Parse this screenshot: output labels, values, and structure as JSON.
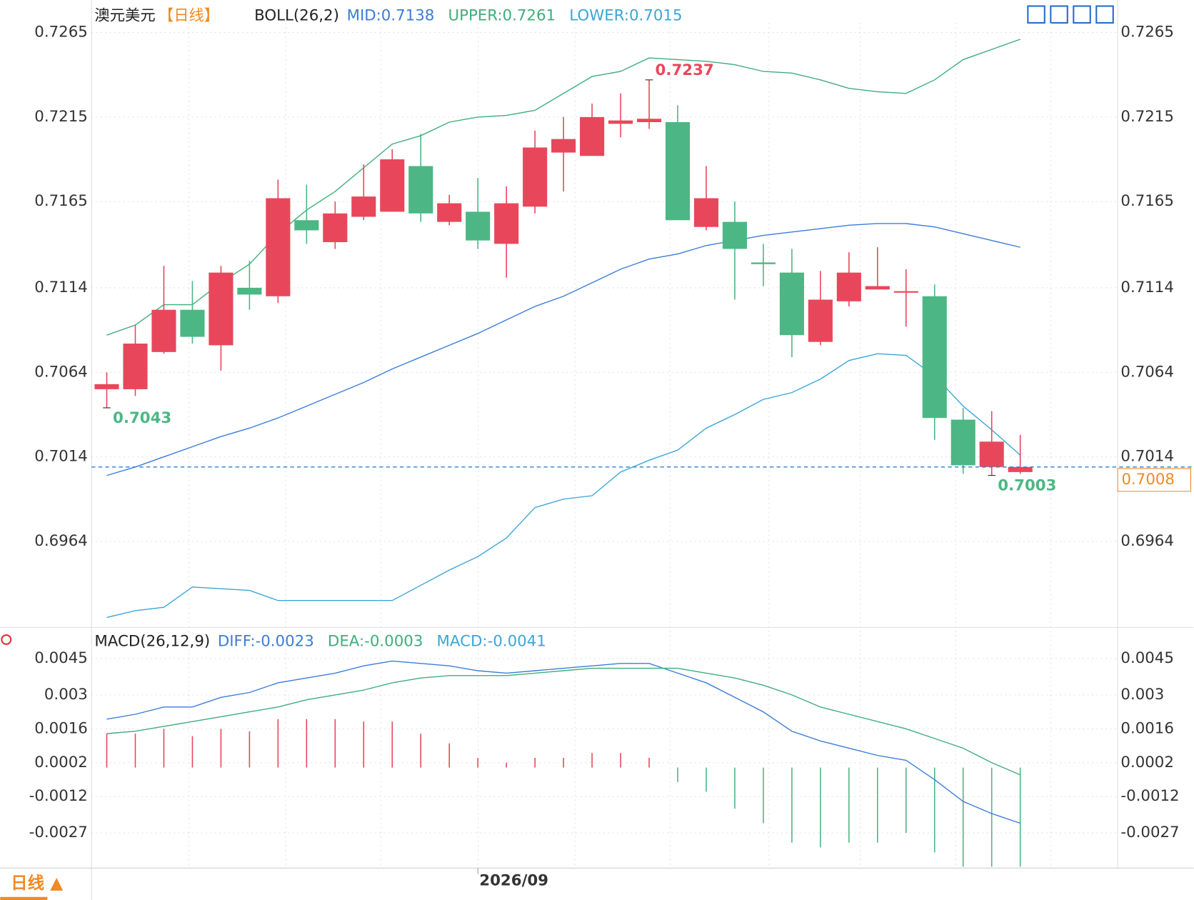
{
  "chart_data": [
    {
      "type": "candlestick",
      "title": "澳元美元",
      "period": "【日线】",
      "indicator": "BOLL(26,2)",
      "x": [
        null,
        null,
        null,
        null,
        null,
        null,
        null,
        null,
        null,
        null,
        null,
        null,
        null,
        "2026/09",
        null,
        null,
        null,
        null,
        null,
        null,
        null,
        null,
        null,
        null,
        null,
        null,
        null,
        null,
        null,
        null,
        null,
        null,
        null
      ],
      "open": [
        0.7054,
        0.7054,
        0.7076,
        0.7101,
        0.708,
        0.7114,
        0.7109,
        0.7154,
        0.7141,
        0.7156,
        0.7159,
        0.7186,
        0.7153,
        0.7159,
        0.714,
        0.7162,
        0.7194,
        0.7192,
        0.7211,
        0.7212,
        0.7212,
        0.715,
        0.7153,
        0.7129,
        0.7123,
        0.7082,
        0.7106,
        0.7113,
        0.7112,
        0.7109,
        0.7036,
        0.7008,
        0.7005
      ],
      "high": [
        0.7064,
        0.7092,
        0.7127,
        0.7118,
        0.7127,
        0.713,
        0.7178,
        0.7175,
        0.7165,
        0.7187,
        0.7196,
        0.7205,
        0.7169,
        0.7179,
        0.7174,
        0.7207,
        0.7215,
        0.7223,
        0.7229,
        0.7237,
        0.7222,
        0.7186,
        0.7165,
        0.714,
        0.7137,
        0.7124,
        0.7135,
        0.7138,
        0.7125,
        0.7116,
        0.7043,
        0.7041,
        0.7027
      ],
      "low": [
        0.7043,
        0.705,
        0.7075,
        0.7081,
        0.7065,
        0.7101,
        0.7105,
        0.714,
        0.7137,
        0.7154,
        0.7159,
        0.7153,
        0.7151,
        0.7137,
        0.712,
        0.7158,
        0.7171,
        0.7192,
        0.7203,
        0.7208,
        0.7154,
        0.7148,
        0.7107,
        0.7115,
        0.7073,
        0.708,
        0.7103,
        0.7113,
        0.7091,
        0.7024,
        0.7004,
        0.7003,
        0.7004
      ],
      "close": [
        0.7057,
        0.7081,
        0.7101,
        0.7085,
        0.7123,
        0.711,
        0.7167,
        0.7148,
        0.7158,
        0.7168,
        0.719,
        0.7158,
        0.7164,
        0.7142,
        0.7164,
        0.7197,
        0.7202,
        0.7215,
        0.7213,
        0.7214,
        0.7154,
        0.7167,
        0.7137,
        0.7128,
        0.7086,
        0.7107,
        0.7123,
        0.7115,
        0.7112,
        0.7037,
        0.7009,
        0.7023,
        0.7008
      ],
      "up_color": "#e8475b",
      "down_color": "#4cb784",
      "series": [
        {
          "name": "MID:0.7138",
          "color": "#3b7dd8",
          "values": [
            0.7003,
            0.7008,
            0.7014,
            0.702,
            0.7026,
            0.7031,
            0.7037,
            0.7044,
            0.7051,
            0.7058,
            0.7066,
            0.7073,
            0.708,
            0.7087,
            0.7095,
            0.7103,
            0.7109,
            0.7117,
            0.7125,
            0.7131,
            0.7134,
            0.7139,
            0.7142,
            0.7145,
            0.7147,
            0.7149,
            0.7151,
            0.7152,
            0.7152,
            0.715,
            0.7146,
            0.7142,
            0.7138
          ]
        },
        {
          "name": "UPPER:0.7261",
          "color": "#3fae7a",
          "values": [
            0.7086,
            0.7092,
            0.7104,
            0.7104,
            0.7117,
            0.7128,
            0.7146,
            0.716,
            0.7171,
            0.7185,
            0.7199,
            0.7204,
            0.7212,
            0.7215,
            0.7216,
            0.7219,
            0.7229,
            0.7239,
            0.7242,
            0.725,
            0.7249,
            0.7248,
            0.7246,
            0.7242,
            0.7241,
            0.7237,
            0.7232,
            0.723,
            0.7229,
            0.7237,
            0.7249,
            0.7255,
            0.7261
          ]
        },
        {
          "name": "LOWER:0.7015",
          "color": "#3aa6d8",
          "values": [
            0.6919,
            0.6923,
            0.6925,
            0.6937,
            0.6936,
            0.6935,
            0.6929,
            0.6929,
            0.6929,
            0.6929,
            0.6929,
            0.6938,
            0.6947,
            0.6955,
            0.6966,
            0.6984,
            0.6989,
            0.6991,
            0.7005,
            0.7012,
            0.7018,
            0.7031,
            0.7039,
            0.7048,
            0.7052,
            0.706,
            0.7071,
            0.7075,
            0.7074,
            0.7062,
            0.7044,
            0.703,
            0.7015
          ]
        }
      ],
      "annotations": [
        {
          "label": "0.7237",
          "at": "high",
          "color": "#e8475b"
        },
        {
          "label": "0.7043",
          "at": "low",
          "color": "#4cb784"
        },
        {
          "label": "0.7003",
          "at": "low",
          "color": "#4cb784"
        }
      ],
      "last_price_label": "0.7008",
      "last_price_color": "#f08a24",
      "ylim": [
        0.6914,
        0.7282
      ],
      "yticks": [
        0.7265,
        0.7215,
        0.7165,
        0.7114,
        0.7064,
        0.7014,
        0.6964
      ],
      "grid": true
    },
    {
      "type": "macd",
      "title": "MACD(26,12,9)",
      "up_color": "#e8475b",
      "down_color": "#4cb784",
      "series": [
        {
          "name": "DIFF:-0.0023",
          "color": "#3b7dd8",
          "values": [
            0.002,
            0.0022,
            0.0025,
            0.0025,
            0.0029,
            0.0031,
            0.0035,
            0.0037,
            0.0039,
            0.0042,
            0.0044,
            0.0043,
            0.0042,
            0.004,
            0.0039,
            0.004,
            0.0041,
            0.0042,
            0.0043,
            0.0043,
            0.0039,
            0.0035,
            0.0029,
            0.0023,
            0.0015,
            0.0011,
            0.0008,
            0.0005,
            0.0003,
            -0.0005,
            -0.0014,
            -0.0019,
            -0.0023
          ]
        },
        {
          "name": "DEA:-0.0003",
          "color": "#3fae7a",
          "values": [
            0.0014,
            0.0015,
            0.0017,
            0.0019,
            0.0021,
            0.0023,
            0.0025,
            0.0028,
            0.003,
            0.0032,
            0.0035,
            0.0037,
            0.0038,
            0.0038,
            0.0038,
            0.0039,
            0.004,
            0.0041,
            0.0041,
            0.0041,
            0.0041,
            0.0039,
            0.0037,
            0.0034,
            0.003,
            0.0025,
            0.0022,
            0.0019,
            0.0016,
            0.0012,
            0.0008,
            0.0002,
            -0.0003
          ]
        }
      ],
      "bars": {
        "name": "MACD:-0.0041",
        "color": "#3aa6d8",
        "values": [
          0.0014,
          0.0014,
          0.0016,
          0.0013,
          0.0016,
          0.0015,
          0.002,
          0.002,
          0.002,
          0.0019,
          0.0019,
          0.0014,
          0.001,
          0.0004,
          0.0002,
          0.0004,
          0.0004,
          0.0006,
          0.0006,
          0.0004,
          -0.0006,
          -0.001,
          -0.0017,
          -0.0023,
          -0.0031,
          -0.0033,
          -0.0031,
          -0.0031,
          -0.0027,
          -0.0035,
          -0.0041,
          -0.0041,
          -0.0041
        ]
      },
      "ylim": [
        -0.00415,
        0.0056
      ],
      "yticks": [
        0.0045,
        0.003,
        0.0016,
        0.0002,
        -0.0012,
        -0.0027
      ],
      "grid": true
    }
  ],
  "footer": {
    "tab": "日线 ▲"
  }
}
